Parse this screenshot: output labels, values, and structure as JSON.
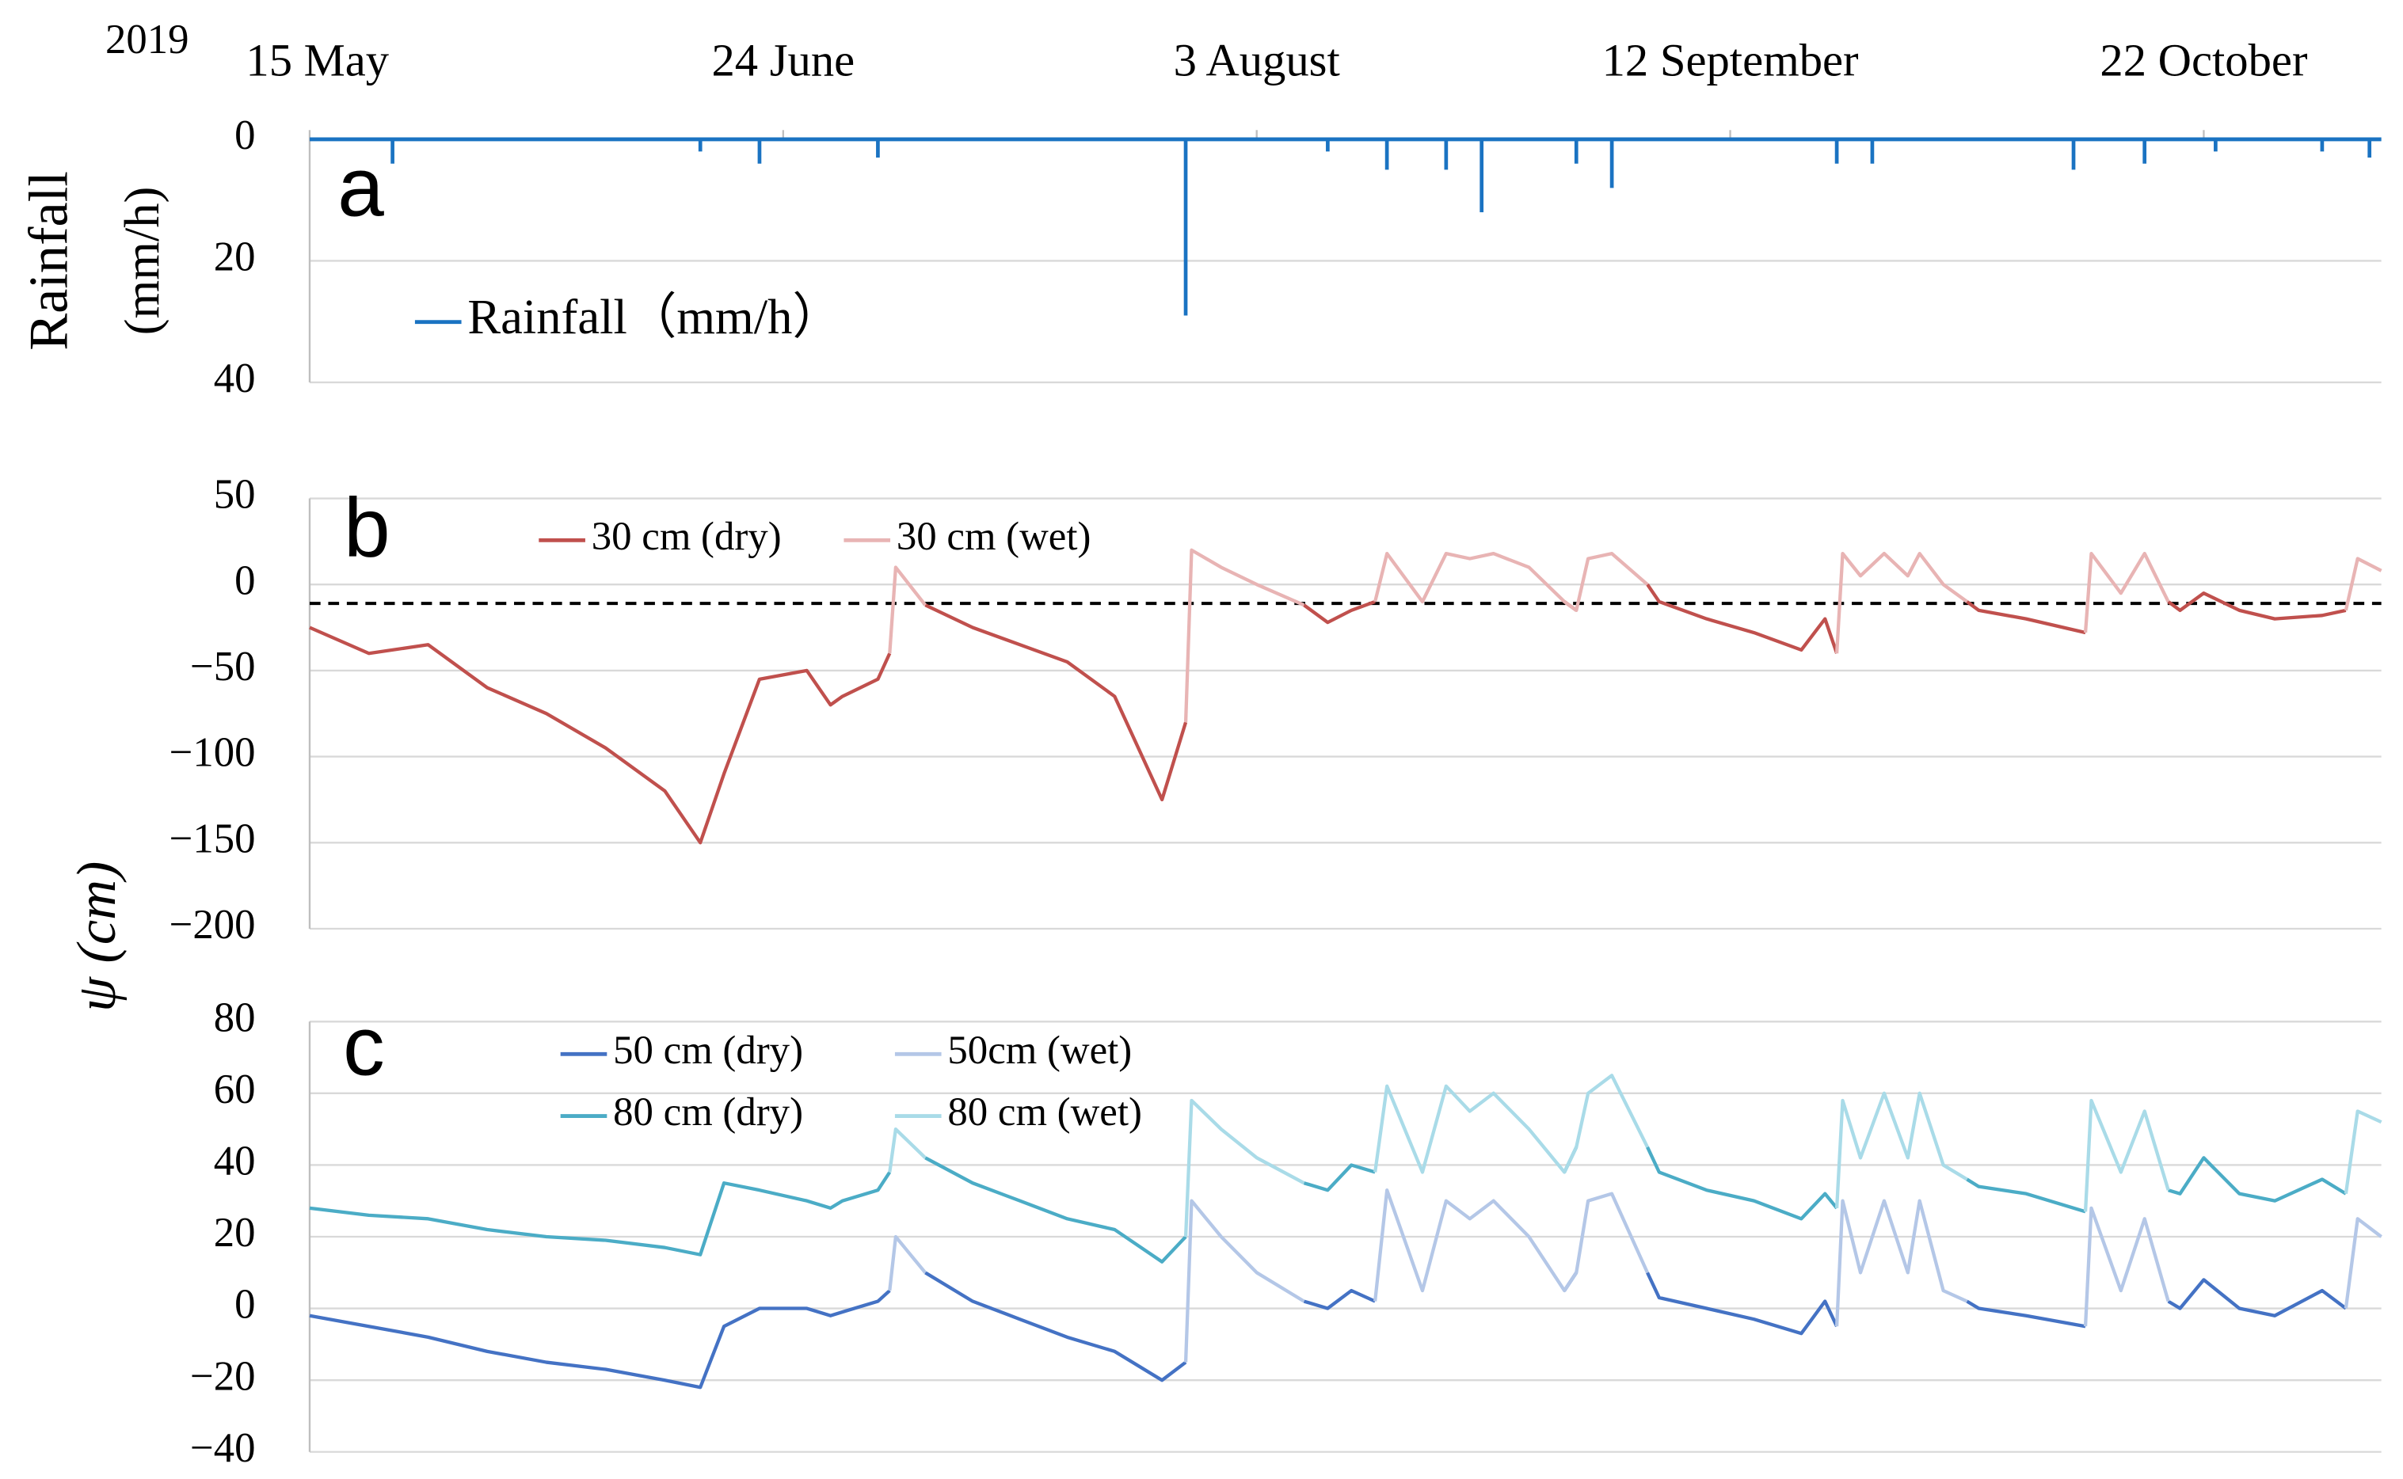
{
  "year": "2019",
  "ylabel": "ψ (cm)",
  "chart_data": [
    {
      "type": "bar",
      "panel_label": "a",
      "ylabel": [
        "Rainfall",
        "(mm/h)"
      ],
      "y_inverted": true,
      "xlim": [
        0,
        175
      ],
      "xticks": [
        {
          "value": 0,
          "label": "15 May"
        },
        {
          "value": 40,
          "label": "24 June"
        },
        {
          "value": 80,
          "label": "3 August"
        },
        {
          "value": 120,
          "label": "12 September"
        },
        {
          "value": 160,
          "label": "22 October"
        }
      ],
      "ylim": [
        0,
        40
      ],
      "yticks": [
        0,
        20,
        40
      ],
      "grid": true,
      "series": [
        {
          "name": "Rainfall（mm/h）",
          "color": "#1a73c2",
          "x": [
            7,
            33,
            38,
            48,
            74,
            86,
            91,
            96,
            99,
            107,
            110,
            129,
            132,
            149,
            155,
            161,
            170,
            174
          ],
          "values": [
            4,
            2,
            4,
            3,
            29,
            2,
            5,
            5,
            12,
            4,
            8,
            4,
            4,
            5,
            4,
            2,
            2,
            3
          ]
        }
      ]
    },
    {
      "type": "line",
      "panel_label": "b",
      "xlim": [
        0,
        175
      ],
      "ylim": [
        -200,
        50
      ],
      "yticks": [
        {
          "value": -200,
          "label": "−200"
        },
        {
          "value": -150,
          "label": "−150"
        },
        {
          "value": -100,
          "label": "−100"
        },
        {
          "value": -50,
          "label": "−50"
        },
        0,
        50
      ],
      "grid": true,
      "reference_line": -11,
      "x": [
        0,
        5,
        10,
        15,
        20,
        25,
        30,
        33,
        35,
        38,
        42,
        44,
        45,
        48,
        49,
        49.5,
        52,
        56,
        60,
        64,
        68,
        72,
        74,
        74.5,
        77,
        80,
        84,
        86,
        88,
        90,
        91,
        94,
        96,
        98,
        100,
        103,
        106,
        107,
        108,
        110,
        113,
        114,
        118,
        122,
        126,
        128,
        129,
        129.5,
        131,
        133,
        135,
        136,
        138,
        140,
        141,
        145,
        150,
        150.5,
        153,
        155,
        157,
        158,
        160,
        163,
        166,
        170,
        172,
        173,
        175
      ],
      "series": [
        {
          "name": "30 cm (dry)",
          "color": "#c0504d",
          "values": [
            -25,
            -40,
            -35,
            -60,
            -75,
            -95,
            -120,
            -150,
            -110,
            -55,
            -50,
            -70,
            -65,
            -55,
            -40,
            null,
            -12,
            -25,
            -35,
            -45,
            -65,
            -125,
            -80,
            null,
            null,
            null,
            -12,
            -22,
            -15,
            -10,
            null,
            -10,
            null,
            null,
            null,
            null,
            -10,
            -15,
            null,
            null,
            0,
            -10,
            -20,
            -28,
            -38,
            -20,
            -40,
            null,
            null,
            null,
            null,
            null,
            null,
            -10,
            -15,
            -20,
            -28,
            null,
            -5,
            null,
            -10,
            -15,
            -5,
            -15,
            -20,
            -18,
            -15,
            null,
            null
          ]
        },
        {
          "name": "30 cm (wet)",
          "color": "#e8b4b4",
          "values": [
            null,
            null,
            null,
            null,
            null,
            null,
            null,
            null,
            null,
            null,
            null,
            null,
            null,
            null,
            -40,
            10,
            -12,
            null,
            null,
            null,
            null,
            null,
            -80,
            20,
            10,
            0,
            -12,
            null,
            null,
            -10,
            18,
            -10,
            18,
            15,
            18,
            10,
            -10,
            -15,
            15,
            18,
            0,
            null,
            null,
            null,
            null,
            null,
            -40,
            18,
            5,
            18,
            5,
            18,
            0,
            -10,
            null,
            null,
            -28,
            18,
            -5,
            18,
            -10,
            null,
            null,
            null,
            null,
            null,
            -15,
            15,
            8
          ]
        }
      ]
    },
    {
      "type": "line",
      "panel_label": "c",
      "xlim": [
        0,
        175
      ],
      "ylim": [
        -40,
        80
      ],
      "yticks": [
        {
          "value": -40,
          "label": "−40"
        },
        {
          "value": -20,
          "label": "−20"
        },
        0,
        20,
        40,
        60,
        80
      ],
      "grid": true,
      "x": [
        0,
        5,
        10,
        15,
        20,
        25,
        30,
        33,
        35,
        38,
        42,
        44,
        45,
        48,
        49,
        49.5,
        52,
        56,
        60,
        64,
        68,
        72,
        74,
        74.5,
        77,
        80,
        84,
        86,
        88,
        90,
        91,
        94,
        96,
        98,
        100,
        103,
        106,
        107,
        108,
        110,
        113,
        114,
        118,
        122,
        126,
        128,
        129,
        129.5,
        131,
        133,
        135,
        136,
        138,
        140,
        141,
        145,
        150,
        150.5,
        153,
        155,
        157,
        158,
        160,
        163,
        166,
        170,
        172,
        173,
        175
      ],
      "series": [
        {
          "name": "50 cm (dry)",
          "color": "#4472c4",
          "values": [
            -2,
            -5,
            -8,
            -12,
            -15,
            -17,
            -20,
            -22,
            -5,
            0,
            0,
            -2,
            -1,
            2,
            5,
            null,
            10,
            2,
            -3,
            -8,
            -12,
            -20,
            -15,
            null,
            null,
            null,
            2,
            0,
            5,
            2,
            null,
            5,
            null,
            null,
            null,
            null,
            5,
            10,
            null,
            null,
            10,
            3,
            0,
            -3,
            -7,
            2,
            -5,
            null,
            null,
            null,
            null,
            null,
            null,
            2,
            0,
            -2,
            -5,
            null,
            5,
            null,
            2,
            0,
            8,
            0,
            -2,
            5,
            0,
            null,
            null
          ]
        },
        {
          "name": "50cm (wet)",
          "color": "#b4c7e7",
          "values": [
            null,
            null,
            null,
            null,
            null,
            null,
            null,
            null,
            null,
            null,
            null,
            null,
            null,
            null,
            5,
            20,
            10,
            null,
            null,
            null,
            null,
            null,
            -15,
            30,
            20,
            10,
            2,
            null,
            null,
            2,
            33,
            5,
            30,
            25,
            30,
            20,
            5,
            10,
            30,
            32,
            10,
            null,
            null,
            null,
            null,
            null,
            -5,
            30,
            10,
            30,
            10,
            30,
            5,
            2,
            null,
            null,
            -5,
            28,
            5,
            25,
            2,
            null,
            null,
            null,
            null,
            null,
            0,
            25,
            20
          ]
        },
        {
          "name": "80 cm (dry)",
          "color": "#4bacc6",
          "values": [
            28,
            26,
            25,
            22,
            20,
            19,
            17,
            15,
            35,
            33,
            30,
            28,
            30,
            33,
            38,
            null,
            42,
            35,
            30,
            25,
            22,
            13,
            20,
            null,
            null,
            null,
            35,
            33,
            40,
            38,
            null,
            38,
            null,
            null,
            null,
            null,
            38,
            45,
            null,
            null,
            45,
            38,
            33,
            30,
            25,
            32,
            28,
            null,
            null,
            null,
            null,
            null,
            null,
            36,
            34,
            32,
            27,
            null,
            38,
            null,
            33,
            32,
            42,
            32,
            30,
            36,
            32,
            null,
            null
          ]
        },
        {
          "name": "80 cm (wet)",
          "color": "#a9dbe8",
          "values": [
            null,
            null,
            null,
            null,
            null,
            null,
            null,
            null,
            null,
            null,
            null,
            null,
            null,
            null,
            38,
            50,
            42,
            null,
            null,
            null,
            null,
            null,
            20,
            58,
            50,
            42,
            35,
            null,
            null,
            38,
            62,
            38,
            62,
            55,
            60,
            50,
            38,
            45,
            60,
            65,
            45,
            null,
            null,
            null,
            null,
            null,
            28,
            58,
            42,
            60,
            42,
            60,
            40,
            36,
            null,
            null,
            27,
            58,
            38,
            55,
            33,
            null,
            null,
            null,
            null,
            null,
            32,
            55,
            52
          ]
        }
      ]
    }
  ]
}
